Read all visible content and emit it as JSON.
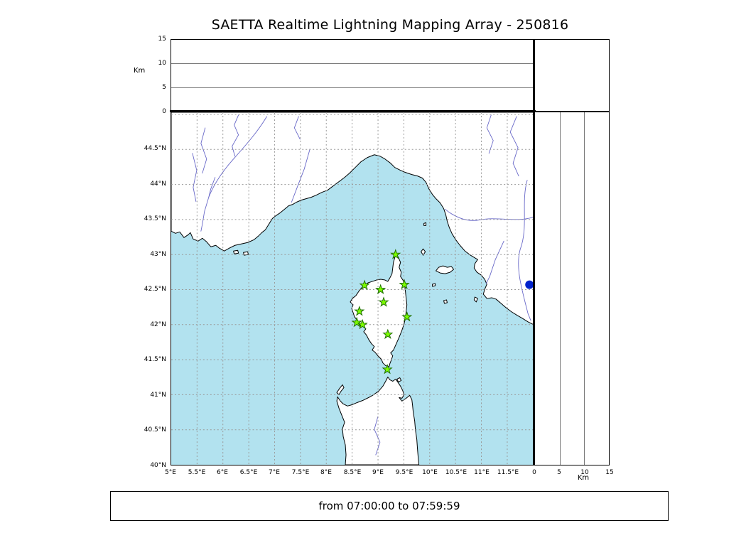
{
  "title": "SAETTA Realtime Lightning Mapping Array - 250816",
  "caption": "from 07:00:00 to 07:59:59",
  "colors": {
    "sea": "#b2e2ef",
    "land": "#ffffff",
    "coastline": "#000000",
    "river": "#6868c8",
    "grid": "#999999",
    "station_fill": "#7cfc00",
    "station_edge": "#207000",
    "event_dot": "#0022cc"
  },
  "chart_data": {
    "type": "scatter",
    "title": "SAETTA Realtime Lightning Mapping Array - 250816",
    "subtitle": "from 07:00:00 to 07:59:59",
    "description": "Lightning mapping array station map (Corsica region) with altitude side panels",
    "panels": {
      "top": {
        "ylabel": "Km",
        "yticks": [
          0,
          5,
          10,
          15
        ],
        "ylim": [
          0,
          15
        ],
        "grid": [
          5,
          10
        ]
      },
      "right": {
        "xlabel": "Km",
        "xticks": [
          0,
          5,
          10,
          15
        ],
        "xlim": [
          0,
          15
        ],
        "grid": [
          5,
          10
        ]
      },
      "map": {
        "lon_lim": [
          5,
          12.01
        ],
        "lat_lim": [
          40,
          45.03
        ],
        "grid_style": "dashed",
        "lon_ticks": [
          {
            "value": 5,
            "label": "5°E"
          },
          {
            "value": 5.5,
            "label": "5.5°E"
          },
          {
            "value": 6,
            "label": "6°E"
          },
          {
            "value": 6.5,
            "label": "6.5°E"
          },
          {
            "value": 7,
            "label": "7°E"
          },
          {
            "value": 7.5,
            "label": "7.5°E"
          },
          {
            "value": 8,
            "label": "8°E"
          },
          {
            "value": 8.5,
            "label": "8.5°E"
          },
          {
            "value": 9,
            "label": "9°E"
          },
          {
            "value": 9.5,
            "label": "9.5°E"
          },
          {
            "value": 10,
            "label": "10°E"
          },
          {
            "value": 10.5,
            "label": "10.5°E"
          },
          {
            "value": 11,
            "label": "11°E"
          },
          {
            "value": 11.5,
            "label": "11.5°E"
          }
        ],
        "lat_ticks": [
          {
            "value": 44.5,
            "label": "44.5°N"
          },
          {
            "value": 44,
            "label": "44°N"
          },
          {
            "value": 43.5,
            "label": "43.5°N"
          },
          {
            "value": 43,
            "label": "43°N"
          },
          {
            "value": 42.5,
            "label": "42.5°N"
          },
          {
            "value": 42,
            "label": "42°N"
          },
          {
            "value": 41.5,
            "label": "41.5°N"
          },
          {
            "value": 41,
            "label": "41°N"
          },
          {
            "value": 40.5,
            "label": "40.5°N"
          },
          {
            "value": 40,
            "label": "40°N"
          }
        ],
        "lon_grid": [
          5.5,
          6,
          6.5,
          7,
          7.5,
          8,
          8.5,
          9,
          9.5,
          10,
          10.5,
          11,
          11.5
        ],
        "lat_grid": [
          40.5,
          41,
          41.5,
          42,
          42.5,
          43,
          43.5,
          44,
          44.5,
          45
        ]
      }
    },
    "stations": [
      {
        "lon": 9.34,
        "lat": 43.0
      },
      {
        "lon": 8.74,
        "lat": 42.56
      },
      {
        "lon": 9.05,
        "lat": 42.5
      },
      {
        "lon": 9.51,
        "lat": 42.57
      },
      {
        "lon": 9.11,
        "lat": 42.32
      },
      {
        "lon": 8.64,
        "lat": 42.19
      },
      {
        "lon": 8.59,
        "lat": 42.03
      },
      {
        "lon": 8.7,
        "lat": 42.0
      },
      {
        "lon": 9.56,
        "lat": 42.11
      },
      {
        "lon": 9.19,
        "lat": 41.86
      },
      {
        "lon": 9.18,
        "lat": 41.36
      }
    ],
    "events": [
      {
        "lon": 11.93,
        "lat": 42.57,
        "marker": "circle",
        "color": "#0022cc"
      }
    ]
  }
}
